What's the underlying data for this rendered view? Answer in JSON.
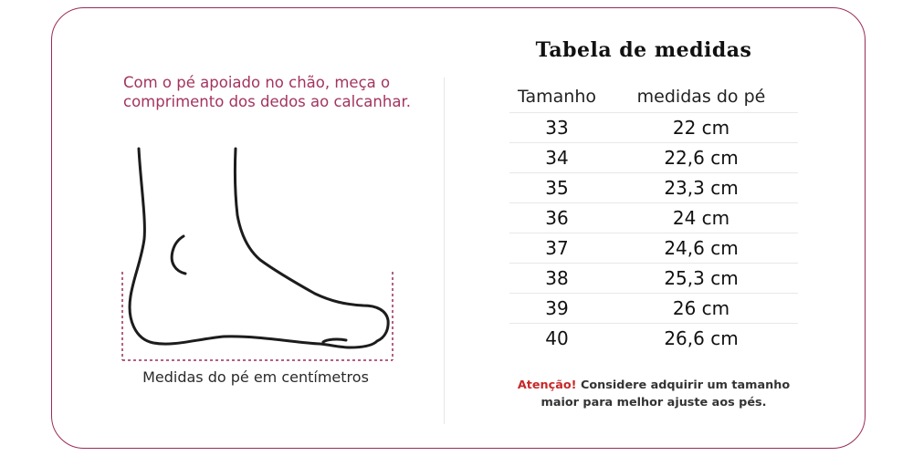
{
  "instruction": "Com o pé apoiado no chão, meça o comprimento dos dedos ao calcanhar.",
  "foot_caption": "Medidas do pé em centímetros",
  "table": {
    "title": "Tabela de medidas",
    "headers": [
      "Tamanho",
      "medidas do pé"
    ],
    "rows": [
      {
        "size": "33",
        "measure": "22 cm"
      },
      {
        "size": "34",
        "measure": "22,6 cm"
      },
      {
        "size": "35",
        "measure": "23,3 cm"
      },
      {
        "size": "36",
        "measure": "24 cm"
      },
      {
        "size": "37",
        "measure": "24,6 cm"
      },
      {
        "size": "38",
        "measure": "25,3 cm"
      },
      {
        "size": "39",
        "measure": "26 cm"
      },
      {
        "size": "40",
        "measure": "26,6 cm"
      }
    ]
  },
  "note": {
    "label": "Atenção!",
    "text": "Considere adquirir um tamanho maior para melhor ajuste aos pés."
  },
  "colors": {
    "accent": "#a3345f",
    "border": "#9b2b59",
    "warning": "#c62828"
  }
}
